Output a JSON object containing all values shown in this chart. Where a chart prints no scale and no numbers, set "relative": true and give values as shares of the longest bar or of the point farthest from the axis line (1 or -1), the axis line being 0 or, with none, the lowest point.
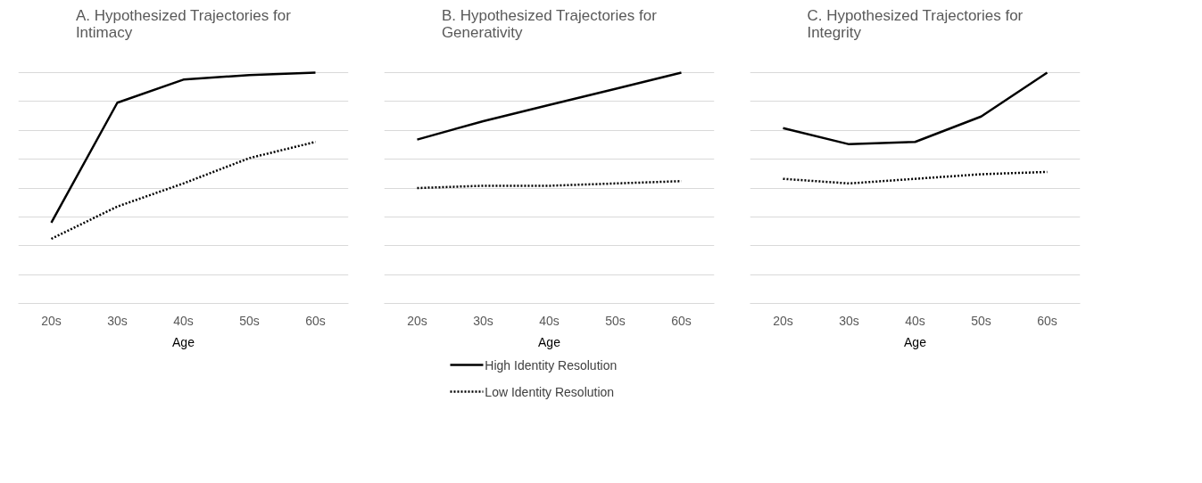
{
  "chart_data": [
    {
      "type": "line",
      "title": "A. Hypothesized Trajectories for Intimacy",
      "xlabel": "Age",
      "categories": [
        "20s",
        "30s",
        "40s",
        "50s",
        "60s"
      ],
      "relative": true,
      "grid": "y",
      "series": [
        {
          "color": "#000000",
          "line_style": "solid",
          "values": [
            0.35,
            0.87,
            0.97,
            0.99,
            1
          ]
        },
        {
          "color": "#000000",
          "line_style": "dotted",
          "values": [
            0.28,
            0.42,
            0.52,
            0.63,
            0.7
          ]
        }
      ]
    },
    {
      "type": "line",
      "title": "B. Hypothesized Trajectories for Generativity",
      "xlabel": "Age",
      "categories": [
        "20s",
        "30s",
        "40s",
        "50s",
        "60s"
      ],
      "relative": true,
      "grid": "y",
      "legend": "bottom",
      "series": [
        {
          "name": "High Identity Resolution",
          "color": "#000000",
          "line_style": "solid",
          "values": [
            0.71,
            0.79,
            0.86,
            0.93,
            1
          ]
        },
        {
          "name": "Low Identity Resolution",
          "color": "#000000",
          "line_style": "dotted",
          "values": [
            0.5,
            0.51,
            0.51,
            0.52,
            0.53
          ]
        }
      ]
    },
    {
      "type": "line",
      "title": "C. Hypothesized Trajectories for Integrity",
      "xlabel": "Age",
      "categories": [
        "20s",
        "30s",
        "40s",
        "50s",
        "60s"
      ],
      "relative": true,
      "grid": "y",
      "series": [
        {
          "color": "#000000",
          "line_style": "solid",
          "values": [
            0.76,
            0.69,
            0.7,
            0.81,
            1
          ]
        },
        {
          "color": "#000000",
          "line_style": "dotted",
          "values": [
            0.54,
            0.52,
            0.54,
            0.56,
            0.57
          ]
        }
      ]
    }
  ]
}
